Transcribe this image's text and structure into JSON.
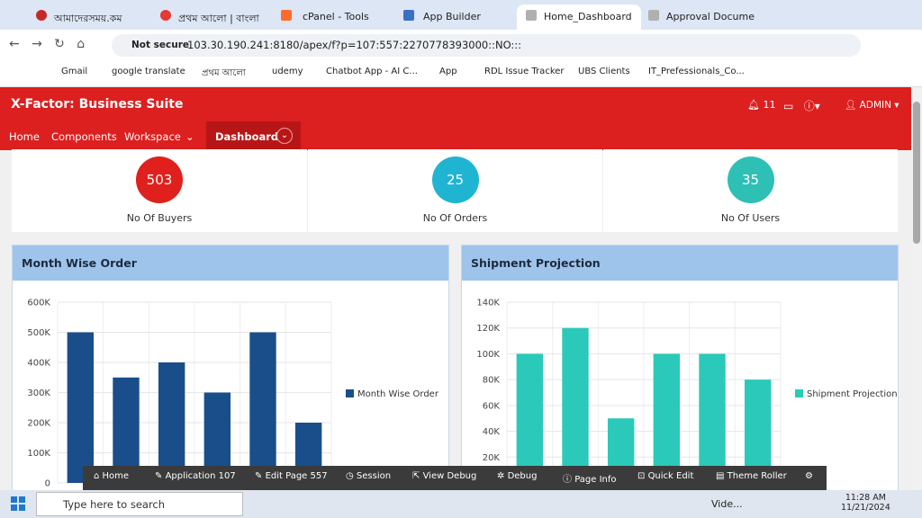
{
  "browser": {
    "tabs": [
      "আমাদেরসময়.কম",
      "প্রথম আলো | বাংলা",
      "cPanel - Tools",
      "App Builder",
      "Home_Dashboard",
      "Approval Docume"
    ],
    "security": "Not secure",
    "url": "103.30.190.241:8180/apex/f?p=107:557:2270778393000::NO:::",
    "bookmarks": [
      "Gmail",
      "google translate",
      "প্রথম আলো",
      "udemy",
      "Chatbot App - AI C...",
      "App",
      "RDL Issue Tracker",
      "UBS Clients",
      "IT_Prefessionals_Co..."
    ]
  },
  "header": {
    "title": "X-Factor: Business Suite",
    "notifications": "11",
    "user": "ADMIN",
    "nav": [
      "Home",
      "Components",
      "Workspace",
      "Dashboard"
    ]
  },
  "stats": [
    {
      "value": "503",
      "label": "No Of Buyers",
      "color": "#e0201c"
    },
    {
      "value": "25",
      "label": "No Of Orders",
      "color": "#1fb4d2"
    },
    {
      "value": "35",
      "label": "No Of Users",
      "color": "#2ebfb5"
    }
  ],
  "panels": [
    {
      "title": "Month Wise Order",
      "chart": {
        "type": "bar",
        "series": [
          {
            "name": "Month Wise Order",
            "color": "#1a4e8a",
            "values": [
              500000,
              350000,
              400000,
              300000,
              500000,
              200000
            ]
          }
        ],
        "ylim": [
          0,
          600000
        ],
        "yticks": [
          0,
          {
            "value": 100000,
            "label": "100K"
          },
          {
            "value": 200000,
            "label": "200K"
          },
          {
            "value": 300000,
            "label": "300K"
          },
          {
            "value": 400000,
            "label": "400K"
          },
          {
            "value": 500000,
            "label": "500K"
          },
          {
            "value": 600000,
            "label": "600K"
          }
        ],
        "grid": true
      }
    },
    {
      "title": "Shipment Projection",
      "chart": {
        "type": "bar",
        "series": [
          {
            "name": "Shipment Projection",
            "color": "#2bc9b9",
            "values": [
              100000,
              120000,
              50000,
              100000,
              100000,
              80000
            ]
          }
        ],
        "ylim": [
          0,
          140000
        ],
        "yticks": [
          {
            "value": 20000,
            "label": "20K"
          },
          {
            "value": 40000,
            "label": "40K"
          },
          {
            "value": 60000,
            "label": "60K"
          },
          {
            "value": 80000,
            "label": "80K"
          },
          {
            "value": 100000,
            "label": "100K"
          },
          {
            "value": 120000,
            "label": "120K"
          },
          {
            "value": 140000,
            "label": "140K"
          }
        ],
        "grid": true
      }
    }
  ],
  "dev_toolbar": [
    "Home",
    "Application 107",
    "Edit Page 557",
    "Session",
    "View Debug",
    "Debug",
    "Page Info",
    "Quick Edit",
    "Theme Roller"
  ],
  "taskbar": {
    "search": "Type here to search",
    "app": "Vide...",
    "time": "11:28 AM",
    "date": "11/21/2024"
  }
}
